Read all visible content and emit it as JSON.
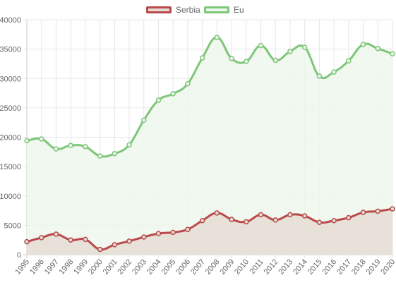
{
  "chart_data": {
    "type": "line",
    "fill": true,
    "legend_position": "top",
    "grid": true,
    "x": [
      "1995",
      "1996",
      "1997",
      "1998",
      "1999",
      "2000",
      "2001",
      "2002",
      "2003",
      "2004",
      "2005",
      "2006",
      "2007",
      "2008",
      "2009",
      "2010",
      "2011",
      "2012",
      "2013",
      "2014",
      "2015",
      "2016",
      "2017",
      "2018",
      "2019",
      "2020"
    ],
    "ylim": [
      0,
      40000
    ],
    "yticks": [
      "0",
      "5000",
      "10000",
      "15000",
      "20000",
      "25000",
      "30000",
      "35000",
      "40000"
    ],
    "series": [
      {
        "name": "Serbia",
        "color": "#b94a4a",
        "fill_color": "#e5ddd5",
        "values": [
          2200,
          2900,
          3500,
          2500,
          2600,
          900,
          1700,
          2300,
          3000,
          3600,
          3800,
          4300,
          5800,
          7100,
          6000,
          5600,
          6800,
          5900,
          6800,
          6600,
          5500,
          5800,
          6300,
          7200,
          7400,
          7800
        ]
      },
      {
        "name": "Eu",
        "color": "#7dc67a",
        "fill_color": "#eef7ec",
        "values": [
          19400,
          19700,
          18000,
          18600,
          18400,
          16800,
          17200,
          18700,
          22900,
          26300,
          27400,
          29100,
          33500,
          37000,
          33400,
          32900,
          35600,
          33100,
          34600,
          35300,
          30400,
          31100,
          33000,
          35800,
          35100,
          34200
        ]
      }
    ]
  }
}
